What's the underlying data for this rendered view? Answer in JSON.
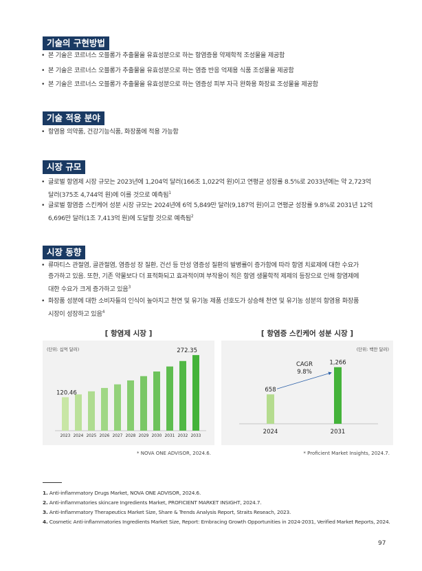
{
  "sections": {
    "implementation": {
      "title": "기술의 구현방법",
      "bullets": [
        "본 기술은 코르너스 오블롱가 추출물을 유효성분으로 하는 항염증용 약제학적 조성물을 제공함",
        "본 기술은 코르너스 오블롱가 추출물을 유효성분으로 하는 염증 반응 억제용 식품 조성물을 제공함",
        "본 기술은 코르너스 오블롱가 추출물을 유효성분으로 하는 염증성 피부 자극 완화용 화장료 조성물을 제공함"
      ]
    },
    "application": {
      "title": "기술 적용 분야",
      "bullets": [
        "항염용 의약품, 건강기능식품, 화장품에 적용 가능함"
      ]
    },
    "market_size": {
      "title": "시장 규모",
      "bullets": [
        {
          "line1": "글로벌 항염제 시장 규모는 2023년에 1,204억 달러(166조 1,022억 원)이고 연평균 성장률 8.5%로 2033년에는 약 2,723억",
          "line2": "달러(375조 4,744억 원)에 이를 것으로 예측됨",
          "sup": "1"
        },
        {
          "line1": "글로벌 항염증 스킨케어 성분 시장 규모는 2024년에 6억 5,849만 달러(9,187억 원)이고 연평균 성장률 9.8%로 2031년 12억",
          "line2": "6,696만 달러(1조 7,413억 원)에 도달할 것으로 예측됨",
          "sup": "2"
        }
      ]
    },
    "market_trend": {
      "title": "시장 동향",
      "bullets": [
        {
          "line1": "류마티스 관절염, 골관절염, 염증성 장 질환, 건선 등 만성 염증성 질환의 발병률이 증가함에 따라 항염 치료제에 대한 수요가",
          "line2": "증가하고 있음. 또한, 기존 약물보다 더 표적화되고 효과적이며 부작용이 적은 항염 생물학적 제제의 등장으로 인해 항염제에",
          "line3": "대한 수요가 크게 증가하고 있음",
          "sup": "3"
        },
        {
          "line1": "화장품 성분에 대한 소비자들의 인식이 높아지고 천연 및 유기농 제품 선호도가 상승해 천연 및 유기농 성분의 항염용 화장품",
          "line2": "시장이 성장하고 있음",
          "sup": "4"
        }
      ]
    }
  },
  "chart_data": [
    {
      "type": "bar",
      "title": "[ 항염제 시장 ]",
      "unit": "(단위: 십억 달러)",
      "categories": [
        "2023",
        "2024",
        "2025",
        "2026",
        "2027",
        "2028",
        "2029",
        "2030",
        "2031",
        "2032",
        "2033"
      ],
      "values": [
        120.46,
        130.7,
        141.8,
        153.9,
        166.9,
        181.1,
        196.5,
        213.2,
        231.3,
        251.0,
        272.35
      ],
      "value_labels": {
        "first": "120.46",
        "last": "272.35"
      },
      "ylim": [
        0,
        300
      ],
      "source": "* NOVA ONE ADVISOR, 2024.6."
    },
    {
      "type": "bar",
      "title": "[ 항염증 스킨케어 성분 시장 ]",
      "unit": "(단위: 백만 달러)",
      "categories": [
        "2024",
        "2031"
      ],
      "values": [
        658,
        1266
      ],
      "value_labels": [
        "658",
        "1,266"
      ],
      "annotation": {
        "line1": "CAGR",
        "line2": "9.8%"
      },
      "ylim": [
        0,
        1400
      ],
      "source": "* Proficient Market Insights, 2024.7."
    }
  ],
  "footnotes": [
    {
      "num": "1.",
      "text": "Anti-inflammatory Drugs Market, NOVA ONE ADVISOR, 2024.6."
    },
    {
      "num": "2.",
      "text": "Anti-inflammatories skincare Ingredients Market, PROFICIENT MARKET INSIGHT, 2024.7."
    },
    {
      "num": "3.",
      "text": "Anti-Inflammatory Therapeutics Market Size, Share & Trends Analysis Report, Straits Reseach, 2023."
    },
    {
      "num": "4.",
      "text": "Cosmetic Anti-inflammatories Ingredients Market Size, Report: Embracing Growth Opportunities in 2024-2031, Verified Market Reports, 2024."
    }
  ],
  "page_number": "97",
  "colors": {
    "section_bg": "#1a3a63",
    "bar_light": "#b5dc8f",
    "bar_dark": "#44b33a",
    "chart_bg": "#f2f2f2",
    "arrow": "#2a5fa8"
  }
}
